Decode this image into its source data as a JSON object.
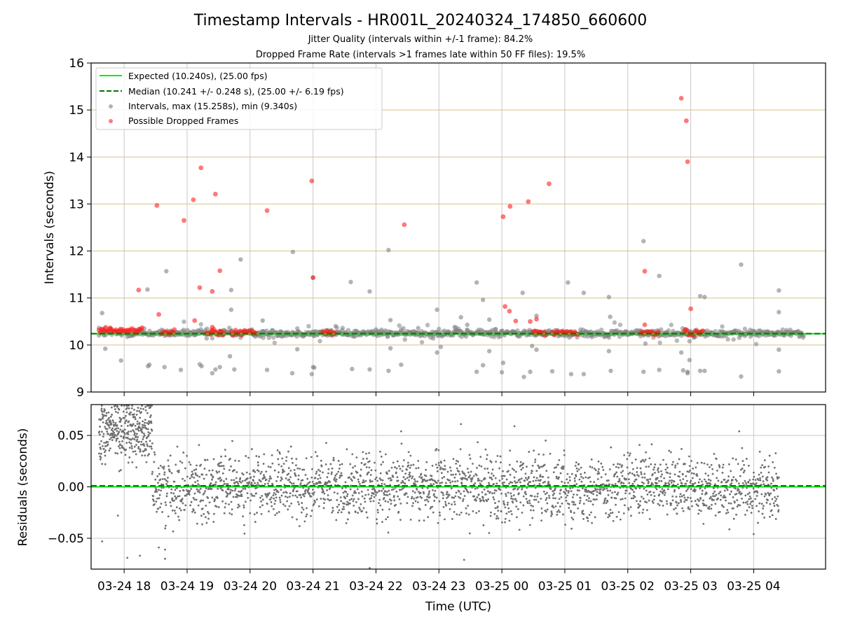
{
  "chart_data": [
    {
      "type": "scatter",
      "title": "Timestamp Intervals - HR001L_20240324_174850_660600",
      "subtitle_lines": [
        "Jitter Quality (intervals within +/-1 frame): 84.2%",
        "Dropped Frame Rate (intervals >1 frames late within 50 FF files): 19.5%"
      ],
      "xlabel": "",
      "ylabel": "Intervals (seconds)",
      "ylim": [
        9,
        16
      ],
      "yticks": [
        "9",
        "10",
        "11",
        "12",
        "13",
        "14",
        "15",
        "16"
      ],
      "grid": "vertical at x ticks; horizontal gold lines at 10-15",
      "legend_position": "top-left",
      "legend": [
        {
          "label": "Expected (10.240s), (25.00 fps)",
          "kind": "line",
          "color": "#00ee00"
        },
        {
          "label": "Median (10.241 +/- 0.248 s), (25.00 +/- 6.19 fps)",
          "kind": "dashed",
          "color": "#007700"
        },
        {
          "label": "Intervals, max (15.258s), min (9.340s)",
          "kind": "marker",
          "color": "#808080"
        },
        {
          "label": "Possible Dropped Frames",
          "kind": "marker",
          "color": "#ff2020"
        }
      ],
      "expected": 10.24,
      "median": 10.241,
      "x_hours_range": [
        17.6,
        28.9
      ],
      "interval_series": {
        "name": "Intervals, max (15.258s), min (9.340s)",
        "color": "#808080",
        "baseline_start": 17.6,
        "baseline_end": 28.8,
        "baseline_value": 10.25,
        "points": [
          {
            "x": 17.65,
            "y": 10.68
          },
          {
            "x": 17.7,
            "y": 9.92
          },
          {
            "x": 17.95,
            "y": 9.67
          },
          {
            "x": 18.37,
            "y": 11.18
          },
          {
            "x": 18.38,
            "y": 9.55
          },
          {
            "x": 18.4,
            "y": 9.58
          },
          {
            "x": 18.64,
            "y": 9.53
          },
          {
            "x": 18.67,
            "y": 11.57
          },
          {
            "x": 18.9,
            "y": 9.47
          },
          {
            "x": 19.2,
            "y": 9.59
          },
          {
            "x": 19.23,
            "y": 9.55
          },
          {
            "x": 19.4,
            "y": 9.4
          },
          {
            "x": 19.45,
            "y": 9.48
          },
          {
            "x": 19.52,
            "y": 9.53
          },
          {
            "x": 19.7,
            "y": 11.17
          },
          {
            "x": 19.7,
            "y": 10.75
          },
          {
            "x": 19.68,
            "y": 9.76
          },
          {
            "x": 19.75,
            "y": 9.48
          },
          {
            "x": 19.85,
            "y": 11.82
          },
          {
            "x": 20.2,
            "y": 10.52
          },
          {
            "x": 20.27,
            "y": 9.47
          },
          {
            "x": 20.67,
            "y": 9.4
          },
          {
            "x": 20.68,
            "y": 11.98
          },
          {
            "x": 20.75,
            "y": 9.91
          },
          {
            "x": 20.98,
            "y": 9.38
          },
          {
            "x": 21.0,
            "y": 9.53
          },
          {
            "x": 21.02,
            "y": 9.52
          },
          {
            "x": 21.0,
            "y": 11.44
          },
          {
            "x": 21.36,
            "y": 10.4
          },
          {
            "x": 21.6,
            "y": 11.34
          },
          {
            "x": 21.62,
            "y": 9.49
          },
          {
            "x": 21.9,
            "y": 11.14
          },
          {
            "x": 21.9,
            "y": 9.48
          },
          {
            "x": 22.0,
            "y": 10.33
          },
          {
            "x": 22.2,
            "y": 9.45
          },
          {
            "x": 22.2,
            "y": 12.02
          },
          {
            "x": 22.23,
            "y": 10.53
          },
          {
            "x": 22.23,
            "y": 9.93
          },
          {
            "x": 22.4,
            "y": 9.58
          },
          {
            "x": 22.6,
            "y": 10.23
          },
          {
            "x": 22.67,
            "y": 10.36
          },
          {
            "x": 22.97,
            "y": 10.75
          },
          {
            "x": 22.97,
            "y": 9.84
          },
          {
            "x": 23.03,
            "y": 9.96
          },
          {
            "x": 23.25,
            "y": 10.38
          },
          {
            "x": 23.35,
            "y": 10.59
          },
          {
            "x": 23.45,
            "y": 10.43
          },
          {
            "x": 23.6,
            "y": 11.33
          },
          {
            "x": 23.6,
            "y": 9.43
          },
          {
            "x": 23.7,
            "y": 10.96
          },
          {
            "x": 23.7,
            "y": 9.57
          },
          {
            "x": 23.8,
            "y": 10.54
          },
          {
            "x": 23.8,
            "y": 9.87
          },
          {
            "x": 23.9,
            "y": 10.34
          },
          {
            "x": 24.02,
            "y": 9.62
          },
          {
            "x": 24.0,
            "y": 9.42
          },
          {
            "x": 24.33,
            "y": 11.11
          },
          {
            "x": 24.35,
            "y": 9.32
          },
          {
            "x": 24.45,
            "y": 9.43
          },
          {
            "x": 24.48,
            "y": 9.98
          },
          {
            "x": 24.55,
            "y": 10.62
          },
          {
            "x": 24.55,
            "y": 9.9
          },
          {
            "x": 24.8,
            "y": 9.44
          },
          {
            "x": 25.05,
            "y": 11.33
          },
          {
            "x": 25.1,
            "y": 9.38
          },
          {
            "x": 25.3,
            "y": 11.11
          },
          {
            "x": 25.3,
            "y": 9.38
          },
          {
            "x": 25.7,
            "y": 11.02
          },
          {
            "x": 25.7,
            "y": 9.87
          },
          {
            "x": 25.72,
            "y": 10.6
          },
          {
            "x": 25.73,
            "y": 9.45
          },
          {
            "x": 26.25,
            "y": 12.21
          },
          {
            "x": 26.25,
            "y": 9.43
          },
          {
            "x": 26.28,
            "y": 10.03
          },
          {
            "x": 26.5,
            "y": 11.47
          },
          {
            "x": 26.5,
            "y": 9.47
          },
          {
            "x": 26.85,
            "y": 9.84
          },
          {
            "x": 26.88,
            "y": 9.46
          },
          {
            "x": 26.95,
            "y": 9.43
          },
          {
            "x": 26.95,
            "y": 9.4
          },
          {
            "x": 26.98,
            "y": 10.08
          },
          {
            "x": 26.98,
            "y": 9.68
          },
          {
            "x": 27.15,
            "y": 11.04
          },
          {
            "x": 27.15,
            "y": 9.45
          },
          {
            "x": 27.22,
            "y": 11.02
          },
          {
            "x": 27.22,
            "y": 9.45
          },
          {
            "x": 27.8,
            "y": 11.71
          },
          {
            "x": 27.8,
            "y": 9.33
          },
          {
            "x": 28.4,
            "y": 11.16
          },
          {
            "x": 28.4,
            "y": 10.7
          },
          {
            "x": 28.4,
            "y": 9.9
          },
          {
            "x": 28.4,
            "y": 9.44
          }
        ]
      },
      "dropped_series": {
        "name": "Possible Dropped Frames",
        "color": "#ff2020",
        "clusters": [
          {
            "x_start": 17.6,
            "x_end": 18.3,
            "y": 10.31
          },
          {
            "x_start": 18.6,
            "y": 10.26,
            "x_end": 18.8
          },
          {
            "x_start": 19.3,
            "x_end": 19.6,
            "y": 10.26
          },
          {
            "x_start": 19.7,
            "x_end": 20.1,
            "y": 10.26
          },
          {
            "x_start": 21.15,
            "x_end": 21.35,
            "y": 10.26
          },
          {
            "x_start": 24.5,
            "x_end": 24.7,
            "y": 10.26
          },
          {
            "x_start": 24.8,
            "x_end": 25.2,
            "y": 10.26
          },
          {
            "x_start": 26.2,
            "x_end": 26.5,
            "y": 10.26
          },
          {
            "x_start": 26.9,
            "x_end": 27.2,
            "y": 10.26
          }
        ],
        "points": [
          {
            "x": 18.23,
            "y": 11.17
          },
          {
            "x": 18.52,
            "y": 12.97
          },
          {
            "x": 18.95,
            "y": 12.65
          },
          {
            "x": 19.1,
            "y": 13.09
          },
          {
            "x": 19.22,
            "y": 13.77
          },
          {
            "x": 19.45,
            "y": 13.21
          },
          {
            "x": 19.52,
            "y": 11.58
          },
          {
            "x": 19.2,
            "y": 11.22
          },
          {
            "x": 19.4,
            "y": 11.14
          },
          {
            "x": 20.27,
            "y": 12.86
          },
          {
            "x": 20.98,
            "y": 13.49
          },
          {
            "x": 21.0,
            "y": 11.43
          },
          {
            "x": 22.45,
            "y": 12.56
          },
          {
            "x": 24.02,
            "y": 12.73
          },
          {
            "x": 24.13,
            "y": 12.95
          },
          {
            "x": 24.42,
            "y": 13.05
          },
          {
            "x": 24.75,
            "y": 13.43
          },
          {
            "x": 24.05,
            "y": 10.82
          },
          {
            "x": 24.12,
            "y": 10.72
          },
          {
            "x": 24.22,
            "y": 10.51
          },
          {
            "x": 24.45,
            "y": 10.5
          },
          {
            "x": 24.55,
            "y": 10.55
          },
          {
            "x": 18.55,
            "y": 10.65
          },
          {
            "x": 19.12,
            "y": 10.52
          },
          {
            "x": 19.4,
            "y": 10.38
          },
          {
            "x": 26.27,
            "y": 11.57
          },
          {
            "x": 26.27,
            "y": 10.43
          },
          {
            "x": 26.85,
            "y": 15.25
          },
          {
            "x": 26.93,
            "y": 14.77
          },
          {
            "x": 26.95,
            "y": 13.9
          },
          {
            "x": 27.0,
            "y": 10.77
          }
        ]
      }
    },
    {
      "type": "scatter",
      "xlabel": "Time (UTC)",
      "ylabel": "Residuals (seconds)",
      "ylim": [
        -0.08,
        0.08
      ],
      "yticks": [
        "−0.05",
        "0.00",
        "0.05"
      ],
      "xticks": [
        "03-24 18",
        "03-24 19",
        "03-24 20",
        "03-24 21",
        "03-24 22",
        "03-24 23",
        "03-25 00",
        "03-25 01",
        "03-25 02",
        "03-25 03",
        "03-25 04"
      ],
      "xtick_hours": [
        18,
        19,
        20,
        21,
        22,
        23,
        24,
        25,
        26,
        27,
        28
      ],
      "grid": "on",
      "reference_lines": {
        "expected": 0.0,
        "median": 0.001
      },
      "residual_series": {
        "name": "Residuals",
        "color": "#707070",
        "early_segment": {
          "x_start": 17.6,
          "x_end": 18.45,
          "center": 0.055,
          "spread": 0.025
        },
        "main_segment": {
          "x_start": 18.45,
          "x_end": 28.4,
          "center": 0.0,
          "spread": 0.025
        },
        "outliers": [
          {
            "x": 17.65,
            "y": -0.053
          },
          {
            "x": 17.9,
            "y": -0.028
          },
          {
            "x": 18.05,
            "y": -0.069
          },
          {
            "x": 18.25,
            "y": -0.067
          },
          {
            "x": 18.55,
            "y": -0.059
          },
          {
            "x": 18.65,
            "y": -0.061
          },
          {
            "x": 18.65,
            "y": -0.07
          },
          {
            "x": 21.9,
            "y": -0.08
          },
          {
            "x": 22.4,
            "y": 0.054
          },
          {
            "x": 23.35,
            "y": 0.061
          },
          {
            "x": 23.4,
            "y": -0.071
          },
          {
            "x": 24.2,
            "y": 0.059
          },
          {
            "x": 27.77,
            "y": 0.054
          },
          {
            "x": 28.0,
            "y": -0.046
          }
        ]
      }
    }
  ]
}
